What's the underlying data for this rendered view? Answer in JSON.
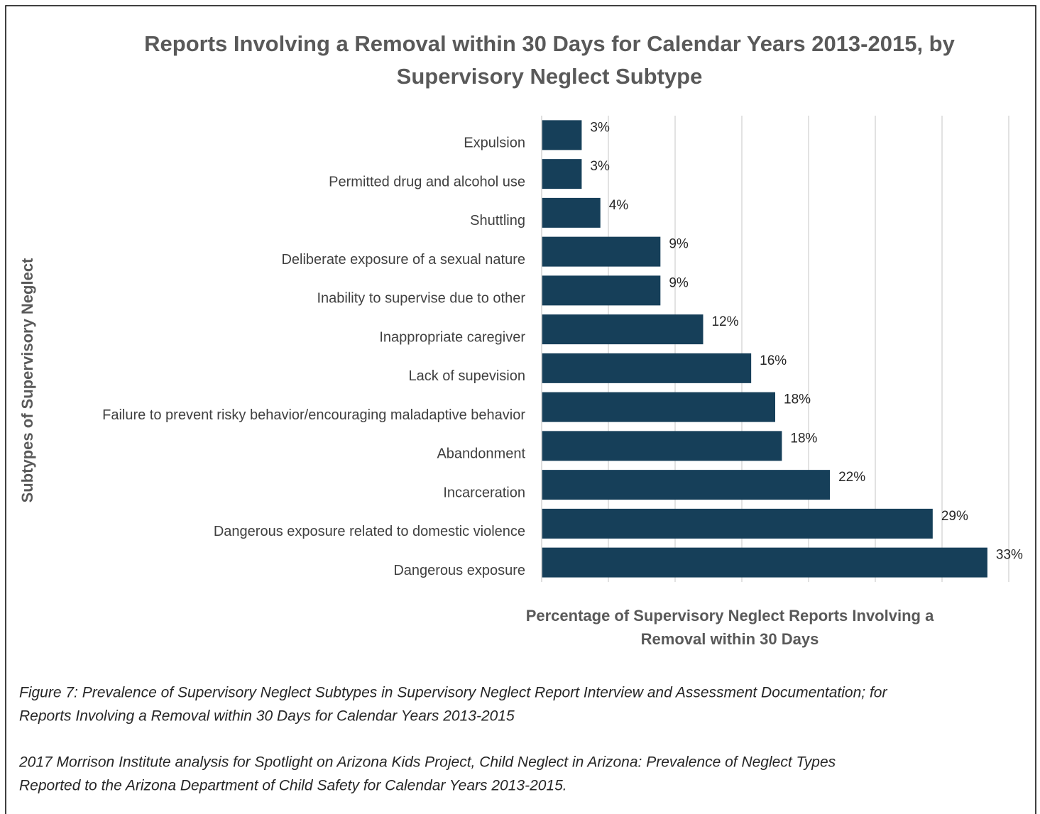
{
  "chart_data": {
    "type": "barh",
    "title": [
      "Reports Involving a Removal within 30 Days for Calendar Years 2013-2015,  by",
      "Supervisory Neglect Subtype"
    ],
    "categories": [
      "Expulsion",
      "Permitted drug and alcohol use",
      "Shuttling",
      "Deliberate exposure of a sexual nature",
      "Inability to supervise due to other",
      "Inappropriate caregiver",
      "Lack of supevision",
      "Failure to prevent risky behavior/encouraging maladaptive behavior",
      "Abandonment",
      "Incarceration",
      "Dangerous exposure related to domestic violence",
      "Dangerous exposure"
    ],
    "values": [
      3.0,
      3.0,
      4.4,
      8.9,
      8.9,
      12.1,
      15.7,
      17.5,
      18.0,
      21.6,
      29.3,
      33.4
    ],
    "value_labels": [
      "3%",
      "3%",
      "4%",
      "9%",
      "9%",
      "12%",
      "16%",
      "18%",
      "18%",
      "22%",
      "29%",
      "33%"
    ],
    "color": "#163f59",
    "xlim": [
      0,
      35
    ],
    "xticks": [
      0,
      5,
      10,
      15,
      20,
      25,
      30,
      35
    ],
    "grid": true,
    "x_label": [
      "Percentage of Supervisory Neglect Reports Involving a",
      "Removal within 30 Days"
    ],
    "y_label": "Subtypes of Supervisory Neglect"
  },
  "caption": [
    "Figure 7: Prevalence of Supervisory Neglect Subtypes in Supervisory Neglect Report Interview and Assessment Documentation; for",
    "Reports Involving a Removal within 30 Days for Calendar Years 2013-2015"
  ],
  "source": [
    "2017 Morrison Institute analysis for Spotlight on Arizona Kids Project, Child Neglect in Arizona: Prevalence of Neglect Types",
    "Reported to the Arizona Department of Child Safety for Calendar Years 2013-2015."
  ]
}
